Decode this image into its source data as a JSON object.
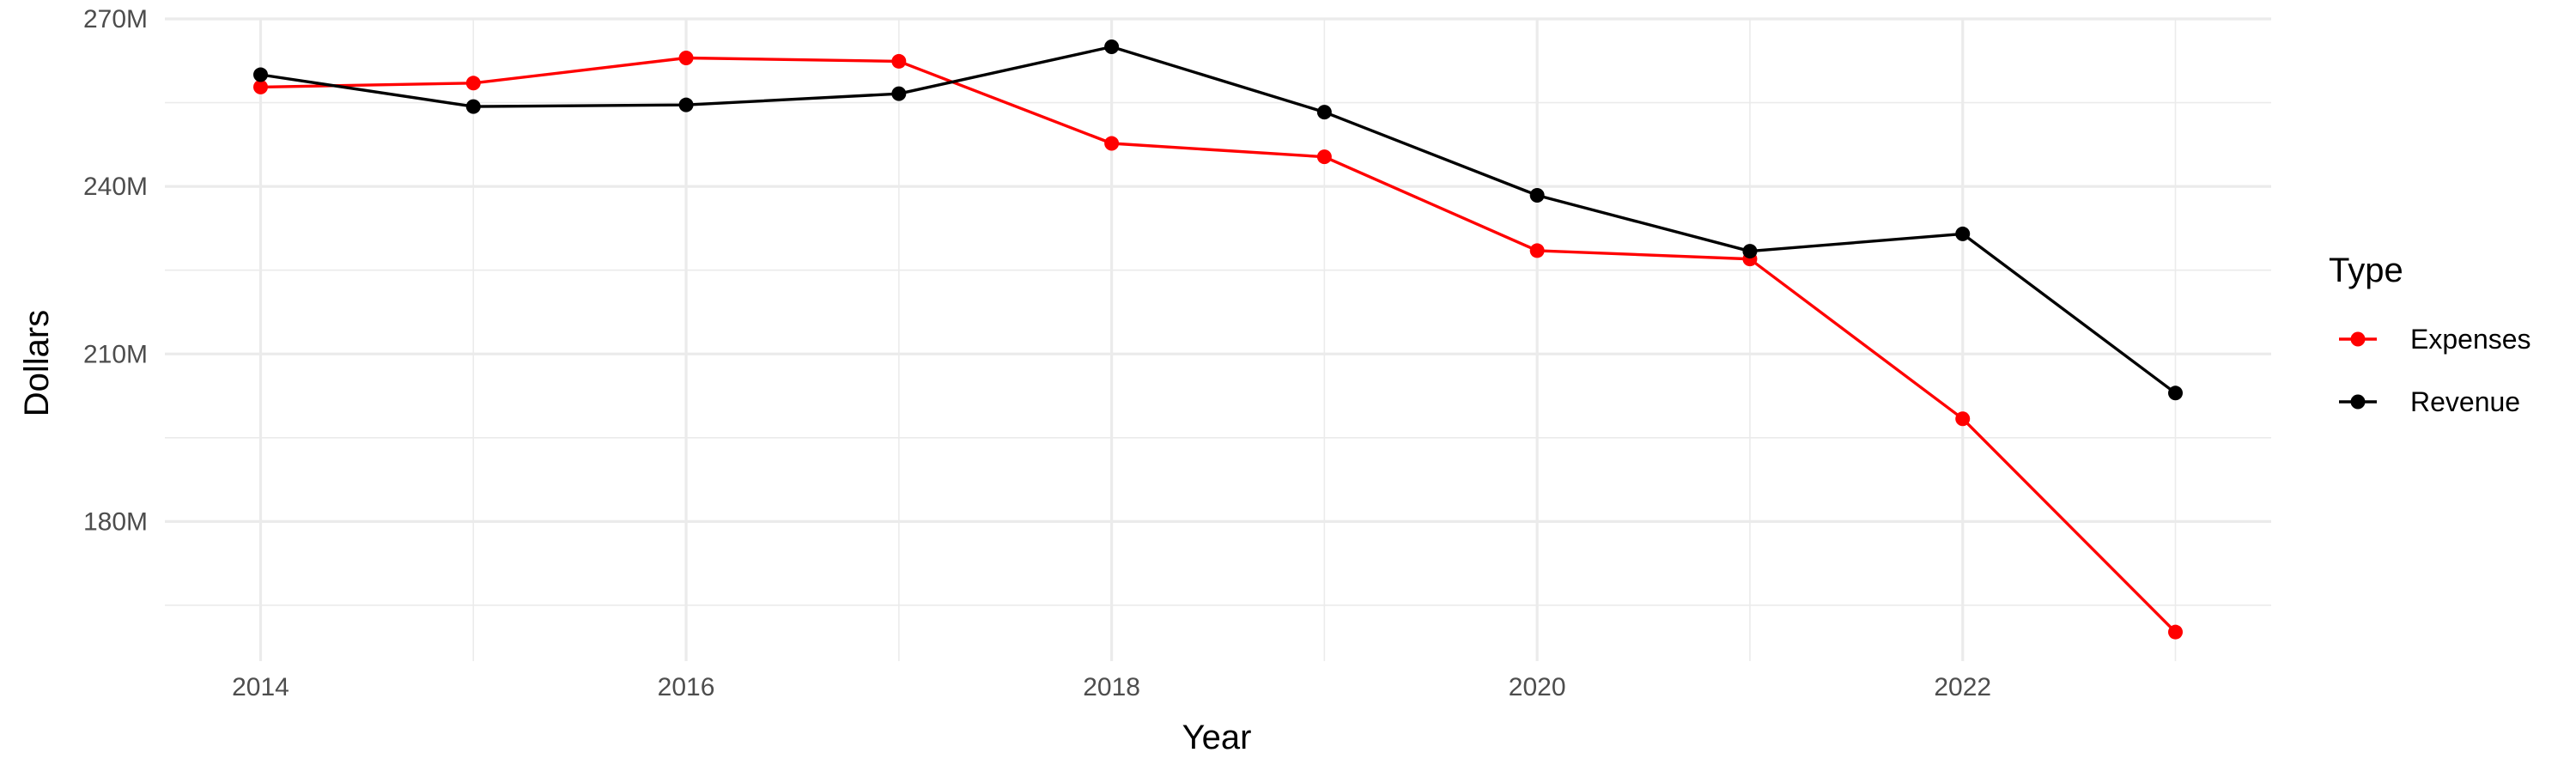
{
  "chart_data": {
    "type": "line",
    "title": "",
    "xlabel": "Year",
    "ylabel": "Dollars",
    "x": [
      2014,
      2015,
      2016,
      2017,
      2018,
      2019,
      2020,
      2021,
      2022,
      2023
    ],
    "series": [
      {
        "name": "Expenses",
        "color": "#ff0000",
        "values": [
          257.8,
          258.5,
          263.0,
          262.4,
          247.7,
          245.3,
          228.5,
          227.0,
          198.4,
          160.2
        ]
      },
      {
        "name": "Revenue",
        "color": "#000000",
        "values": [
          260.0,
          254.3,
          254.6,
          256.6,
          265.0,
          253.3,
          238.4,
          228.4,
          231.5,
          203.0
        ]
      }
    ],
    "xlim": [
      2013.55,
      2023.45
    ],
    "ylim": [
      155,
      270
    ],
    "y_ticks": [
      180,
      210,
      240,
      270
    ],
    "y_tick_labels": [
      "180M",
      "210M",
      "240M",
      "270M"
    ],
    "x_ticks": [
      2014,
      2016,
      2018,
      2020,
      2022
    ],
    "x_tick_labels": [
      "2014",
      "2016",
      "2018",
      "2020",
      "2022"
    ],
    "grid": true,
    "legend": {
      "title": "Type",
      "placement": "right"
    }
  }
}
